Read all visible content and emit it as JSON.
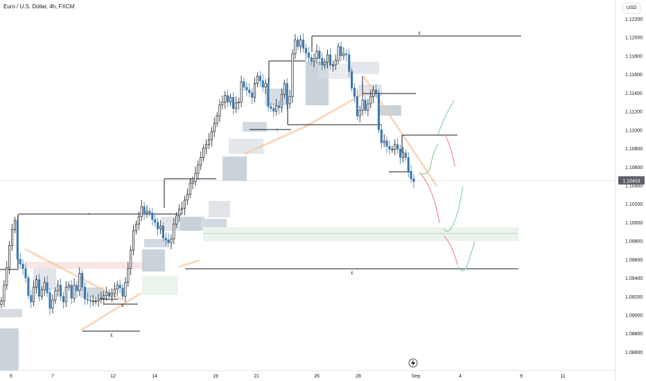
{
  "title": "Euro / U.S. Dollar, 4h, FXCM",
  "currency": "USD",
  "current_price": "1.10453",
  "colors": {
    "bull": "#131722",
    "bear": "#3a78b0",
    "zone_gray": "#b4c0cb",
    "zone_light": "#d9dde3",
    "zone_green": "#e9f3ea",
    "zone_red": "#f7dede",
    "trend": "#f7c9a3",
    "arrow_green": "#8bd19a",
    "arrow_red": "#f08a8a"
  },
  "chart_data": {
    "type": "candlestick",
    "y_range": [
      1.0845,
      1.1245
    ],
    "y_ticks": [
      "1.12200",
      "1.12000",
      "1.11800",
      "1.11600",
      "1.11400",
      "1.11200",
      "1.11000",
      "1.10800",
      "1.10600",
      "1.10400",
      "1.10200",
      "1.10000",
      "1.09800",
      "1.09600",
      "1.09400",
      "1.09200",
      "1.09000",
      "1.08800",
      "1.08600"
    ],
    "x_ticks": [
      "5",
      "7",
      "12",
      "14",
      "19",
      "21",
      "26",
      "28",
      "Sep",
      "4",
      "9",
      "11"
    ],
    "closes": [
      1.0915,
      1.0932,
      1.0951,
      1.0975,
      1.0992,
      1.1002,
      1.096,
      1.0955,
      1.095,
      1.094,
      1.0921,
      1.0914,
      1.093,
      1.0938,
      1.092,
      1.0927,
      1.0935,
      1.0924,
      1.0907,
      1.0916,
      1.0926,
      1.0932,
      1.092,
      1.0914,
      1.093,
      1.0932,
      1.0918,
      1.0932,
      1.0926,
      1.0945,
      1.093,
      1.0917,
      1.0916,
      1.0915,
      1.0915,
      1.0915,
      1.0917,
      1.0918,
      1.0921,
      1.0924,
      1.092,
      1.0923,
      1.0928,
      1.0932,
      1.0929,
      1.092,
      1.0935,
      1.095,
      1.097,
      1.0991,
      1.0998,
      1.1006,
      1.1017,
      1.101,
      1.1012,
      1.101,
      1.1003,
      1.1,
      1.0993,
      1.0996,
      1.0983,
      1.0981,
      1.0978,
      1.0982,
      1.0998,
      1.1007,
      1.1014,
      1.1015,
      1.1024,
      1.103,
      1.1042,
      1.1044,
      1.1053,
      1.1062,
      1.107,
      1.108,
      1.1084,
      1.1089,
      1.1098,
      1.1107,
      1.1115,
      1.1127,
      1.113,
      1.1137,
      1.113,
      1.1135,
      1.1123,
      1.1129,
      1.113,
      1.1152,
      1.1146,
      1.1143,
      1.114,
      1.1135,
      1.115,
      1.1158,
      1.1153,
      1.1146,
      1.115,
      1.1125,
      1.1123,
      1.112,
      1.1126,
      1.1124,
      1.1138,
      1.115,
      1.1128,
      1.1136,
      1.1182,
      1.1197,
      1.119,
      1.1197,
      1.1188,
      1.1183,
      1.1178,
      1.1174,
      1.1177,
      1.1185,
      1.1177,
      1.117,
      1.1173,
      1.1181,
      1.117,
      1.117,
      1.1175,
      1.119,
      1.118,
      1.1182,
      1.1181,
      1.1163,
      1.1145,
      1.1136,
      1.1115,
      1.1121,
      1.1132,
      1.1121,
      1.1128,
      1.1136,
      1.1143,
      1.114,
      1.11,
      1.1086,
      1.1088,
      1.1082,
      1.1079,
      1.1079,
      1.1084,
      1.1079,
      1.107,
      1.1075,
      1.107,
      1.1055,
      1.1047,
      1.1044
    ]
  },
  "labels": {
    "eq_high": "£",
    "eq_low_big": "£",
    "eq_low_left": "£",
    "eq_low_mid": "£",
    "mark_a": "^",
    "mark_b": "†",
    "mark_c": "†"
  }
}
